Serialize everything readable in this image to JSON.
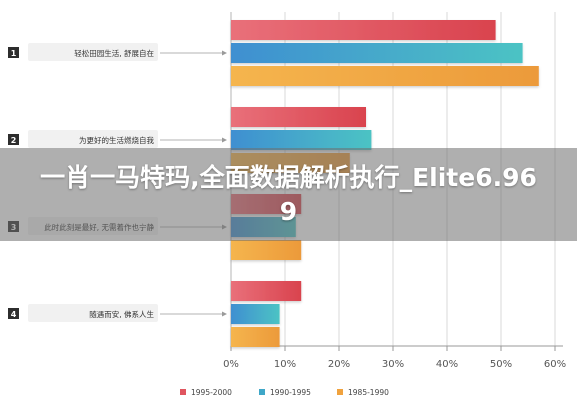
{
  "chart_data": {
    "type": "bar",
    "orientation": "horizontal",
    "categories": [
      {
        "number": "1",
        "label": "轻松田园生活, 舒展自在"
      },
      {
        "number": "2",
        "label": "为更好的生活燃烧自我"
      },
      {
        "number": "3",
        "label": "此时此刻是最好, 无需着作也宁静"
      },
      {
        "number": "4",
        "label": "随遇而安, 佛系人生"
      }
    ],
    "series": [
      {
        "name": "1995-2000",
        "color": "#e0555f",
        "values": [
          49,
          25,
          13,
          13
        ]
      },
      {
        "name": "1990-1995",
        "color": "#3fa7c8",
        "values": [
          54,
          26,
          12,
          9
        ]
      },
      {
        "name": "1985-1990",
        "color": "#f0a23e",
        "values": [
          57,
          22,
          13,
          9
        ]
      }
    ],
    "xlim": [
      0,
      60
    ],
    "xticks": [
      "0%",
      "10%",
      "20%",
      "30%",
      "40%",
      "50%",
      "60%"
    ],
    "grid": true,
    "legend": "bottom"
  },
  "overlay": {
    "title": "一肖一马特玛,全面数据解析执行_Elite6.969"
  }
}
